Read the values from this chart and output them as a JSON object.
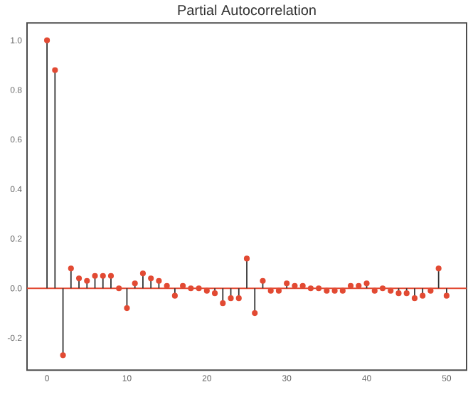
{
  "chart_data": {
    "type": "lollipop",
    "title": "Partial Autocorrelation",
    "x": [
      0,
      1,
      2,
      3,
      4,
      5,
      6,
      7,
      8,
      9,
      10,
      11,
      12,
      13,
      14,
      15,
      16,
      17,
      18,
      19,
      20,
      21,
      22,
      23,
      24,
      25,
      26,
      27,
      28,
      29,
      30,
      31,
      32,
      33,
      34,
      35,
      36,
      37,
      38,
      39,
      40,
      41,
      42,
      43,
      44,
      45,
      46,
      47,
      48,
      49,
      50
    ],
    "values": [
      1.0,
      0.88,
      -0.27,
      0.08,
      0.04,
      0.03,
      0.05,
      0.05,
      0.05,
      0.0,
      -0.08,
      0.02,
      0.06,
      0.04,
      0.03,
      0.01,
      -0.03,
      0.01,
      0.0,
      0.0,
      -0.01,
      -0.02,
      -0.06,
      -0.04,
      -0.04,
      0.12,
      -0.1,
      0.03,
      -0.01,
      -0.01,
      0.02,
      0.01,
      0.01,
      0.0,
      0.0,
      -0.01,
      -0.01,
      -0.01,
      0.01,
      0.01,
      0.02,
      -0.01,
      0.0,
      -0.01,
      -0.02,
      -0.02,
      -0.04,
      -0.03,
      -0.01,
      0.08,
      -0.03
    ],
    "color": "#e24a33",
    "marker": "circle",
    "xlim": [
      -2.5,
      52.5
    ],
    "ylim": [
      -0.33,
      1.07
    ],
    "xticks": [
      0,
      10,
      20,
      30,
      40,
      50
    ],
    "yticks": [
      {
        "value": -0.2,
        "label": "-0.2"
      },
      {
        "value": 0.0,
        "label": "0.0"
      },
      {
        "value": 0.2,
        "label": "0.2"
      },
      {
        "value": 0.4,
        "label": "0.4"
      },
      {
        "value": 0.6,
        "label": "0.6"
      },
      {
        "value": 0.8,
        "label": "0.8"
      },
      {
        "value": 1.0,
        "label": "1.0"
      }
    ],
    "ref_lines": [
      {
        "axis": "y",
        "value": 0,
        "color": "#e24a33"
      }
    ],
    "grid": false
  }
}
